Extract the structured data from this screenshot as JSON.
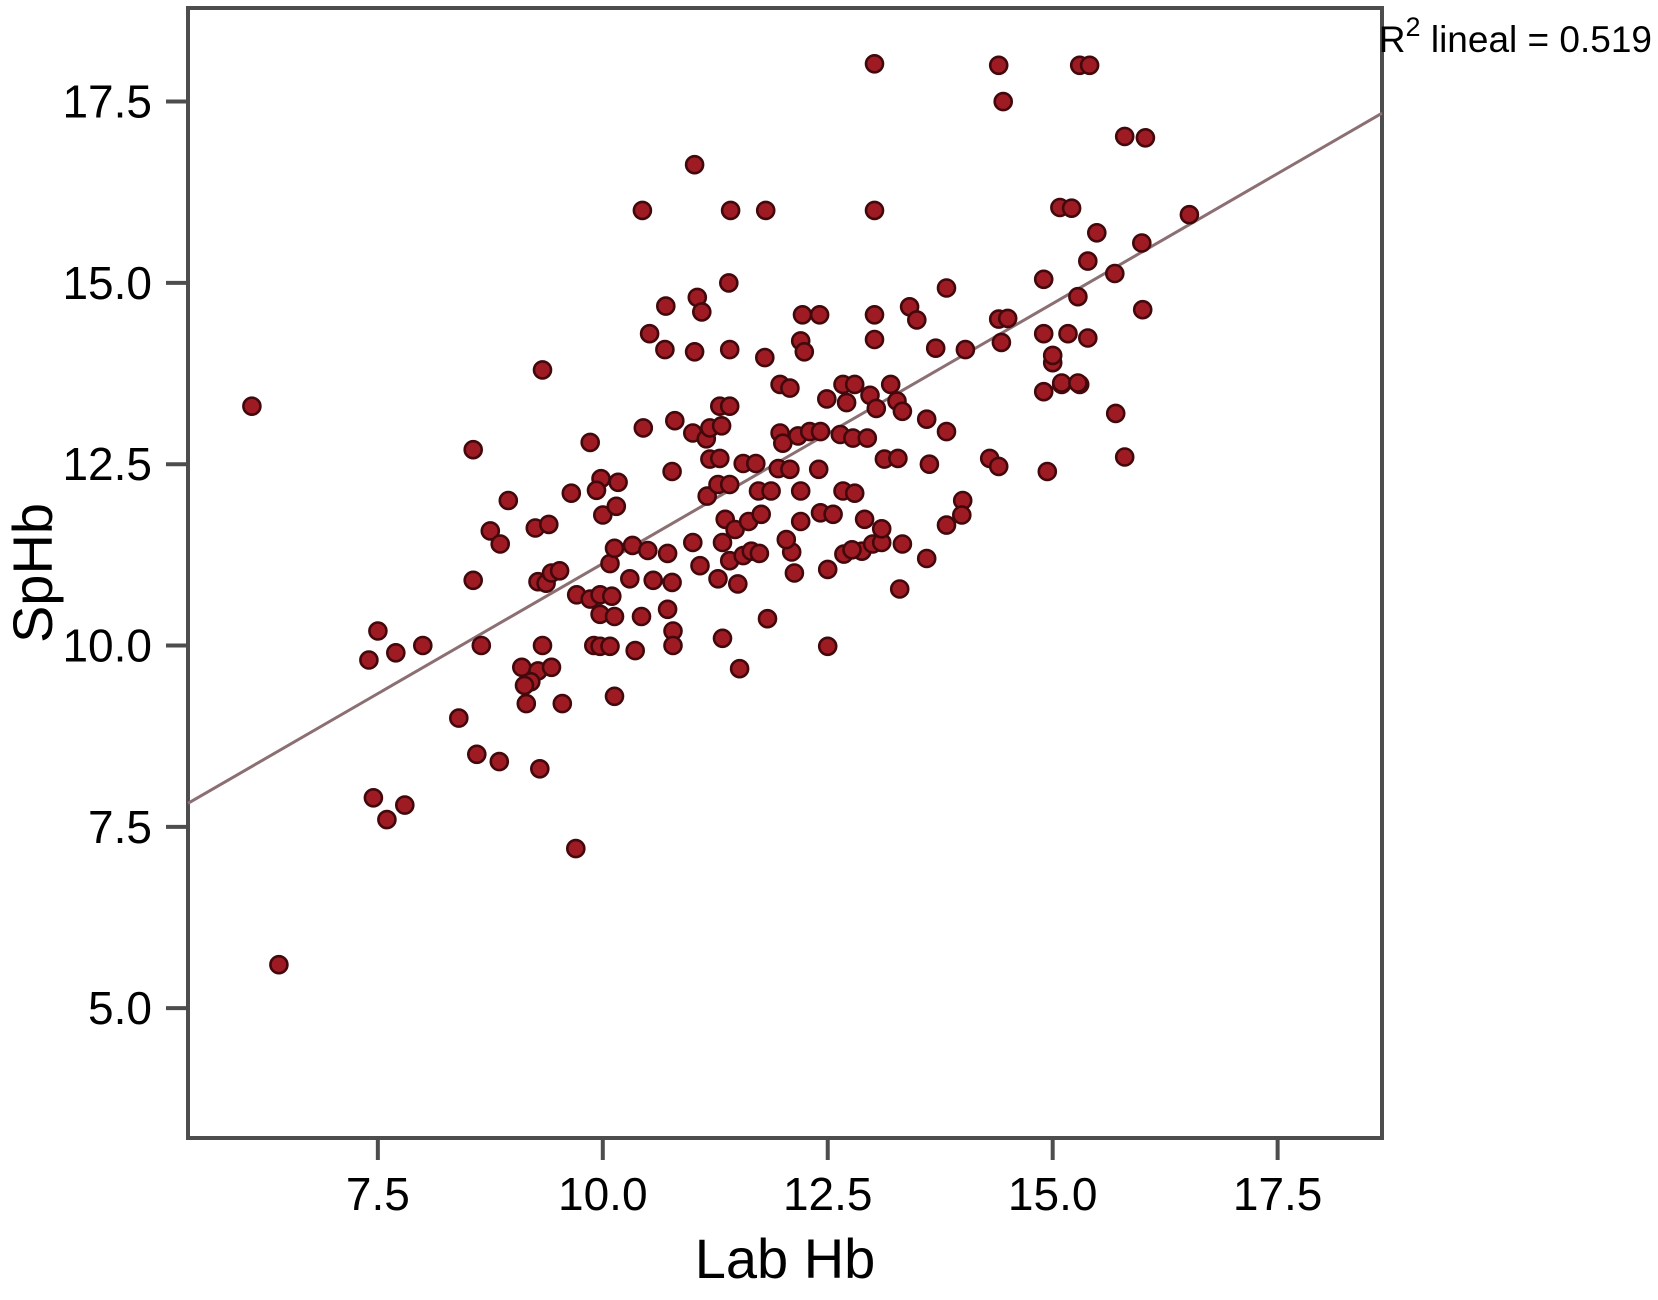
{
  "chart_data": {
    "type": "scatter",
    "title": "",
    "xlabel": "Lab Hb",
    "ylabel": "SpHb",
    "annotation": "R2 lineal = 0.519",
    "annotation_parts": {
      "base": "R",
      "sup": "2",
      "rest": " lineal = 0.519"
    },
    "r_squared": 0.519,
    "xlim": [
      5.39,
      18.66
    ],
    "ylim": [
      3.21,
      18.79
    ],
    "x_ticks": [
      7.5,
      10.0,
      12.5,
      15.0,
      17.5
    ],
    "x_tick_labels": [
      "7.5",
      "10.0",
      "12.5",
      "15.0",
      "17.5"
    ],
    "y_ticks": [
      5.0,
      7.5,
      10.0,
      12.5,
      15.0,
      17.5
    ],
    "y_tick_labels": [
      "5.0",
      "7.5",
      "10.0",
      "12.5",
      "15.0",
      "17.5"
    ],
    "grid": false,
    "legend": "none",
    "regression_line": {
      "slope": 0.717,
      "intercept": 3.96,
      "x_start": 5.39,
      "x_end": 18.66
    },
    "colors": {
      "point_fill": "#9e1b24",
      "point_edge": "#42080c",
      "line": "#8b6f73",
      "axis": "#4d4d4d"
    },
    "point_radius_px": 8.5,
    "points": [
      [
        6.1,
        13.3
      ],
      [
        6.4,
        5.6
      ],
      [
        7.45,
        7.9
      ],
      [
        7.8,
        7.8
      ],
      [
        7.6,
        7.6
      ],
      [
        9.7,
        7.2
      ],
      [
        7.4,
        9.8
      ],
      [
        7.5,
        10.2
      ],
      [
        7.7,
        9.9
      ],
      [
        8.0,
        10.0
      ],
      [
        8.4,
        9.0
      ],
      [
        8.6,
        8.5
      ],
      [
        8.85,
        8.4
      ],
      [
        9.3,
        8.3
      ],
      [
        8.65,
        10.0
      ],
      [
        9.33,
        10.0
      ],
      [
        9.1,
        9.7
      ],
      [
        9.28,
        9.65
      ],
      [
        9.43,
        9.7
      ],
      [
        9.2,
        9.5
      ],
      [
        9.13,
        9.45
      ],
      [
        9.15,
        9.2
      ],
      [
        9.55,
        9.2
      ],
      [
        9.9,
        10.0
      ],
      [
        9.97,
        9.99
      ],
      [
        10.08,
        9.99
      ],
      [
        10.36,
        9.93
      ],
      [
        10.13,
        9.3
      ],
      [
        8.56,
        10.9
      ],
      [
        9.28,
        10.88
      ],
      [
        9.37,
        10.86
      ],
      [
        9.43,
        11.0
      ],
      [
        9.52,
        11.03
      ],
      [
        9.71,
        10.7
      ],
      [
        9.86,
        10.64
      ],
      [
        9.97,
        10.7
      ],
      [
        10.1,
        10.68
      ],
      [
        9.97,
        10.43
      ],
      [
        10.13,
        10.4
      ],
      [
        10.43,
        10.4
      ],
      [
        10.72,
        10.5
      ],
      [
        10.78,
        10.2
      ],
      [
        10.78,
        10.0
      ],
      [
        10.3,
        10.92
      ],
      [
        10.56,
        10.9
      ],
      [
        10.77,
        10.87
      ],
      [
        10.08,
        11.13
      ],
      [
        10.13,
        11.34
      ],
      [
        10.33,
        11.38
      ],
      [
        10.5,
        11.31
      ],
      [
        10.72,
        11.27
      ],
      [
        11.0,
        11.42
      ],
      [
        11.08,
        11.1
      ],
      [
        11.33,
        11.42
      ],
      [
        11.41,
        11.17
      ],
      [
        11.56,
        11.24
      ],
      [
        11.65,
        11.3
      ],
      [
        11.74,
        11.27
      ],
      [
        12.1,
        11.29
      ],
      [
        12.13,
        11.0
      ],
      [
        12.5,
        11.05
      ],
      [
        12.68,
        11.26
      ],
      [
        12.88,
        11.3
      ],
      [
        13.0,
        11.4
      ],
      [
        13.1,
        11.42
      ],
      [
        13.3,
        10.78
      ],
      [
        11.28,
        10.92
      ],
      [
        11.5,
        10.85
      ],
      [
        11.33,
        10.1
      ],
      [
        11.83,
        10.37
      ],
      [
        11.52,
        9.68
      ],
      [
        12.5,
        9.99
      ],
      [
        11.36,
        11.74
      ],
      [
        11.47,
        11.6
      ],
      [
        11.62,
        11.71
      ],
      [
        11.76,
        11.81
      ],
      [
        12.04,
        11.46
      ],
      [
        12.2,
        11.71
      ],
      [
        12.42,
        11.83
      ],
      [
        12.56,
        11.81
      ],
      [
        12.77,
        11.32
      ],
      [
        12.91,
        11.74
      ],
      [
        13.1,
        11.61
      ],
      [
        13.33,
        11.4
      ],
      [
        13.6,
        11.2
      ],
      [
        13.82,
        11.66
      ],
      [
        11.16,
        12.06
      ],
      [
        11.28,
        12.22
      ],
      [
        11.41,
        12.22
      ],
      [
        11.73,
        12.13
      ],
      [
        11.87,
        12.13
      ],
      [
        12.2,
        12.13
      ],
      [
        12.67,
        12.13
      ],
      [
        12.8,
        12.1
      ],
      [
        10.0,
        11.8
      ],
      [
        10.15,
        11.92
      ],
      [
        9.98,
        12.3
      ],
      [
        10.17,
        12.25
      ],
      [
        9.65,
        12.1
      ],
      [
        9.93,
        12.14
      ],
      [
        8.95,
        12.0
      ],
      [
        8.75,
        11.58
      ],
      [
        8.86,
        11.4
      ],
      [
        9.25,
        11.62
      ],
      [
        9.4,
        11.67
      ],
      [
        11.19,
        12.57
      ],
      [
        11.3,
        12.58
      ],
      [
        11.56,
        12.51
      ],
      [
        11.7,
        12.51
      ],
      [
        11.95,
        12.44
      ],
      [
        12.08,
        12.43
      ],
      [
        12.4,
        12.43
      ],
      [
        13.13,
        12.57
      ],
      [
        13.28,
        12.58
      ],
      [
        13.63,
        12.5
      ],
      [
        10.77,
        12.4
      ],
      [
        14.3,
        12.58
      ],
      [
        14.4,
        12.47
      ],
      [
        14.94,
        12.4
      ],
      [
        15.8,
        12.6
      ],
      [
        14.0,
        12.0
      ],
      [
        13.99,
        11.8
      ],
      [
        8.56,
        12.7
      ],
      [
        9.86,
        12.8
      ],
      [
        10.45,
        13.0
      ],
      [
        10.8,
        13.1
      ],
      [
        11.0,
        12.93
      ],
      [
        11.15,
        12.85
      ],
      [
        11.97,
        12.93
      ],
      [
        12.0,
        12.79
      ],
      [
        12.17,
        12.89
      ],
      [
        12.3,
        12.95
      ],
      [
        12.42,
        12.95
      ],
      [
        12.64,
        12.91
      ],
      [
        12.78,
        12.86
      ],
      [
        12.94,
        12.86
      ],
      [
        13.82,
        12.95
      ],
      [
        11.19,
        13.0
      ],
      [
        11.32,
        13.03
      ],
      [
        11.3,
        13.3
      ],
      [
        11.41,
        13.3
      ],
      [
        11.97,
        13.6
      ],
      [
        12.08,
        13.55
      ],
      [
        12.49,
        13.4
      ],
      [
        12.67,
        13.6
      ],
      [
        12.8,
        13.6
      ],
      [
        12.71,
        13.35
      ],
      [
        12.97,
        13.45
      ],
      [
        13.04,
        13.27
      ],
      [
        13.2,
        13.6
      ],
      [
        13.27,
        13.37
      ],
      [
        13.33,
        13.23
      ],
      [
        13.6,
        13.12
      ],
      [
        14.9,
        13.5
      ],
      [
        15.1,
        13.6
      ],
      [
        15.3,
        13.6
      ],
      [
        15.7,
        13.2
      ],
      [
        15.0,
        13.9
      ],
      [
        15.1,
        13.62
      ],
      [
        15.28,
        13.62
      ],
      [
        9.33,
        13.8
      ],
      [
        10.52,
        14.3
      ],
      [
        10.69,
        14.08
      ],
      [
        11.02,
        14.05
      ],
      [
        11.41,
        14.08
      ],
      [
        11.8,
        13.97
      ],
      [
        12.2,
        14.2
      ],
      [
        12.24,
        14.05
      ],
      [
        12.22,
        14.56
      ],
      [
        12.41,
        14.56
      ],
      [
        13.02,
        14.56
      ],
      [
        13.02,
        14.22
      ],
      [
        13.41,
        14.67
      ],
      [
        13.49,
        14.49
      ],
      [
        13.7,
        14.1
      ],
      [
        14.03,
        14.08
      ],
      [
        14.43,
        14.18
      ],
      [
        10.7,
        14.68
      ],
      [
        11.05,
        14.8
      ],
      [
        11.1,
        14.6
      ],
      [
        14.4,
        14.5
      ],
      [
        14.5,
        14.51
      ],
      [
        14.9,
        14.3
      ],
      [
        15.17,
        14.3
      ],
      [
        15.39,
        14.24
      ],
      [
        15.0,
        14.0
      ],
      [
        11.4,
        15.0
      ],
      [
        13.82,
        14.93
      ],
      [
        14.9,
        15.05
      ],
      [
        15.28,
        14.81
      ],
      [
        15.39,
        15.3
      ],
      [
        15.69,
        15.13
      ],
      [
        15.99,
        15.55
      ],
      [
        16.0,
        14.63
      ],
      [
        15.49,
        15.69
      ],
      [
        16.52,
        15.94
      ],
      [
        15.08,
        16.04
      ],
      [
        15.21,
        16.03
      ],
      [
        10.44,
        16.0
      ],
      [
        11.42,
        16.0
      ],
      [
        11.81,
        16.0
      ],
      [
        13.02,
        16.0
      ],
      [
        11.02,
        16.63
      ],
      [
        13.02,
        18.02
      ],
      [
        14.4,
        18.0
      ],
      [
        15.3,
        18.0
      ],
      [
        15.41,
        18.0
      ],
      [
        14.45,
        17.5
      ],
      [
        15.8,
        17.02
      ],
      [
        16.03,
        17.0
      ]
    ]
  }
}
